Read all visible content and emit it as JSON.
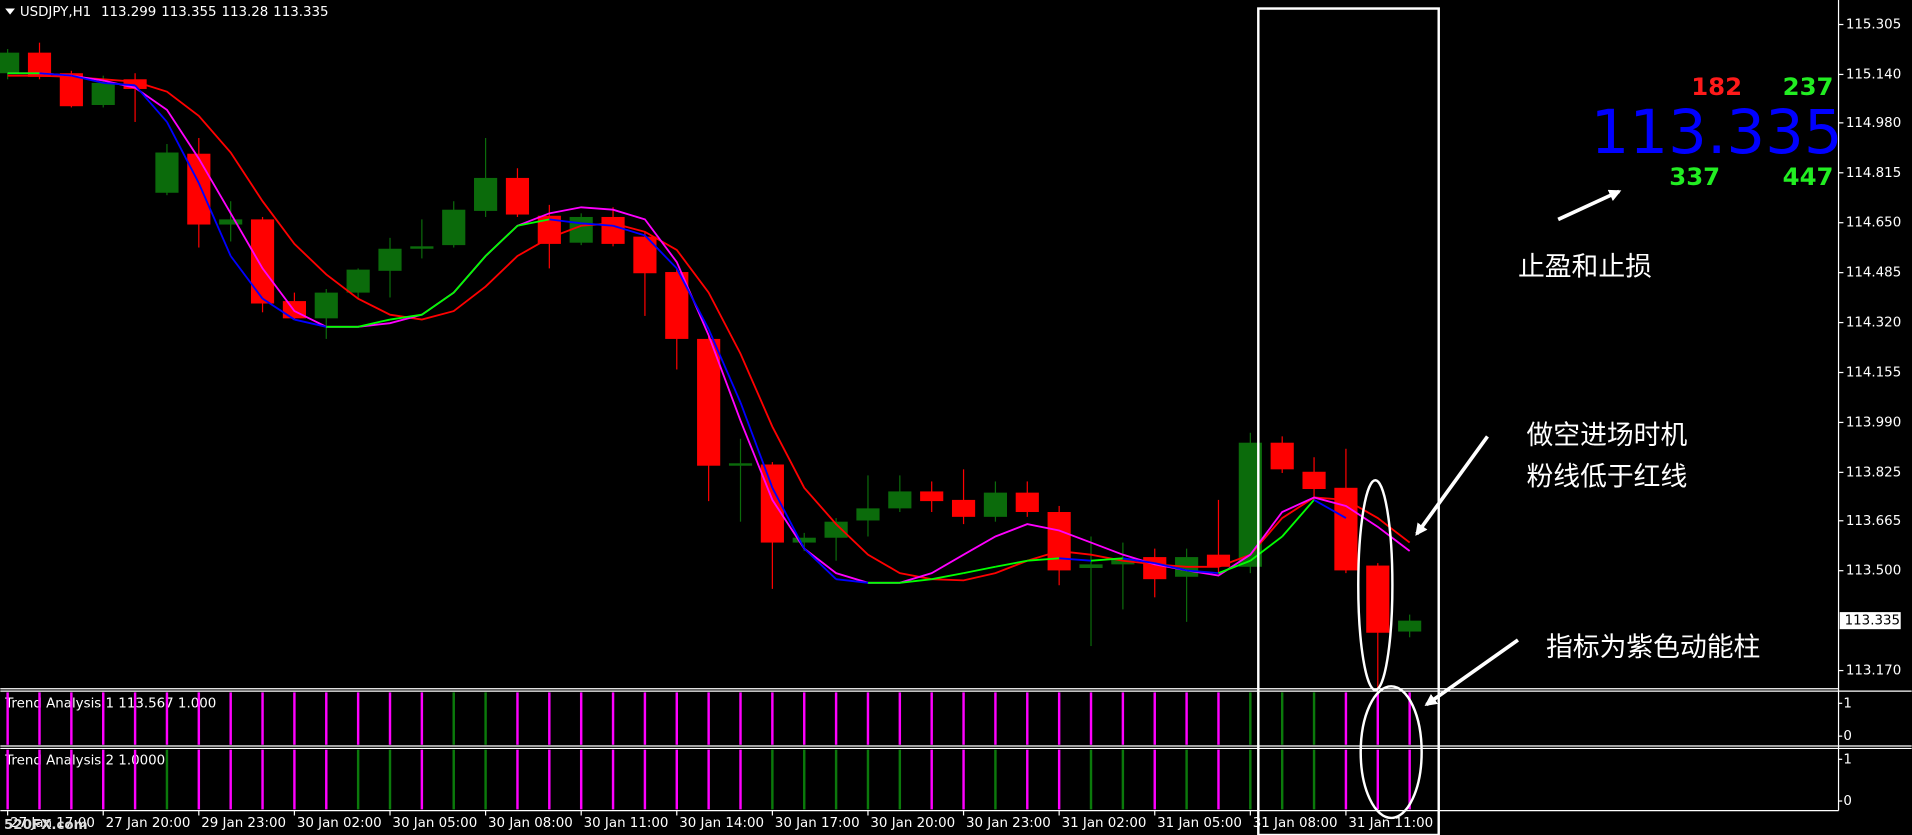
{
  "chart_data": {
    "type": "candlestick",
    "title": "USDJPY,H1",
    "ylim": [
      113.11,
      115.386
    ],
    "yticks": [
      115.305,
      {
        "value": 115.14,
        "label": "115.140"
      },
      {
        "value": 114.98,
        "label": "114.980"
      },
      114.815,
      {
        "value": 114.65,
        "label": "114.650"
      },
      114.485,
      {
        "value": 114.32,
        "label": "114.320"
      },
      114.155,
      {
        "value": 113.99,
        "label": "113.990"
      },
      113.825,
      113.665,
      {
        "value": 113.5,
        "label": "113.500"
      },
      {
        "value": 113.17,
        "label": "113.170"
      }
    ],
    "categories": [
      "27 Jan 17:00",
      null,
      null,
      "27 Jan 20:00",
      null,
      null,
      "29 Jan 23:00",
      null,
      null,
      "30 Jan 02:00",
      null,
      null,
      "30 Jan 05:00",
      null,
      null,
      "30 Jan 08:00",
      null,
      null,
      "30 Jan 11:00",
      null,
      null,
      "30 Jan 14:00",
      null,
      null,
      "30 Jan 17:00",
      null,
      null,
      "30 Jan 20:00",
      null,
      null,
      "30 Jan 23:00",
      null,
      null,
      "31 Jan 02:00",
      null,
      null,
      "31 Jan 05:00",
      null,
      null,
      "31 Jan 08:00",
      null,
      null,
      "31 Jan 11:00",
      null,
      null
    ],
    "up_color": "#0b6b0b",
    "down_color": "#ff0000",
    "open": [
      115.144,
      115.212,
      115.144,
      115.039,
      115.124,
      114.749,
      114.878,
      114.644,
      114.661,
      114.391,
      114.334,
      114.419,
      114.491,
      114.564,
      114.576,
      114.689,
      114.798,
      114.673,
      114.584,
      114.669,
      114.604,
      114.487,
      114.266,
      113.847,
      113.851,
      113.593,
      113.609,
      113.666,
      113.706,
      113.762,
      113.734,
      113.678,
      113.758,
      113.694,
      113.509,
      113.521,
      113.545,
      113.48,
      113.553,
      113.513,
      113.923,
      113.827,
      113.774,
      113.517,
      113.299
    ],
    "high": [
      115.224,
      115.245,
      115.152,
      115.136,
      115.144,
      114.91,
      114.93,
      114.721,
      114.669,
      114.419,
      114.431,
      114.499,
      114.6,
      114.661,
      114.721,
      114.93,
      114.83,
      114.709,
      114.681,
      114.701,
      114.62,
      114.499,
      114.274,
      113.936,
      113.859,
      113.625,
      113.674,
      113.815,
      113.815,
      113.795,
      113.835,
      113.795,
      113.795,
      113.714,
      113.613,
      113.593,
      113.573,
      113.573,
      113.734,
      113.956,
      113.944,
      113.875,
      113.903,
      113.525,
      113.355
    ],
    "low": [
      115.124,
      115.124,
      115.031,
      115.031,
      114.983,
      114.741,
      114.568,
      114.588,
      114.354,
      114.33,
      114.266,
      114.399,
      114.403,
      114.532,
      114.568,
      114.669,
      114.669,
      114.499,
      114.576,
      114.572,
      114.342,
      114.165,
      113.73,
      113.662,
      113.44,
      113.565,
      113.533,
      113.613,
      113.694,
      113.694,
      113.654,
      113.662,
      113.678,
      113.452,
      113.251,
      113.372,
      113.412,
      113.331,
      113.492,
      113.492,
      113.823,
      113.734,
      113.492,
      113.11,
      113.28
    ],
    "close": [
      115.212,
      115.132,
      115.035,
      115.112,
      115.092,
      114.882,
      114.644,
      114.661,
      114.383,
      114.334,
      114.419,
      114.495,
      114.564,
      114.572,
      114.693,
      114.798,
      114.677,
      114.58,
      114.669,
      114.58,
      114.483,
      114.266,
      113.847,
      113.855,
      113.593,
      113.609,
      113.662,
      113.706,
      113.762,
      113.73,
      113.678,
      113.758,
      113.694,
      113.501,
      113.521,
      113.541,
      113.472,
      113.545,
      113.513,
      113.923,
      113.835,
      113.77,
      113.501,
      113.295,
      113.335
    ],
    "lines": [
      {
        "color": "#ff0000",
        "values": [
          115.136,
          115.136,
          115.132,
          115.124,
          115.116,
          115.083,
          115.003,
          114.882,
          114.721,
          114.58,
          114.479,
          114.399,
          114.346,
          114.33,
          114.358,
          114.439,
          114.54,
          114.6,
          114.64,
          114.648,
          114.62,
          114.56,
          114.419,
          114.217,
          113.976,
          113.774,
          113.654,
          113.553,
          113.492,
          113.472,
          113.468,
          113.492,
          113.533,
          113.565,
          113.553,
          113.533,
          113.521,
          113.513,
          113.513,
          113.553,
          113.674,
          113.742,
          113.734,
          113.674,
          113.593
        ]
      },
      {
        "color": "#ff00ff",
        "values": [
          115.144,
          115.144,
          115.136,
          115.12,
          115.096,
          115.023,
          114.862,
          114.681,
          114.499,
          114.358,
          114.306,
          114.306,
          114.318,
          114.346,
          114.419,
          114.54,
          114.64,
          114.681,
          114.701,
          114.693,
          114.661,
          114.52,
          114.278,
          113.996,
          113.734,
          113.573,
          113.492,
          113.46,
          113.46,
          113.492,
          113.553,
          113.613,
          113.654,
          113.633,
          113.593,
          113.553,
          113.521,
          113.501,
          113.484,
          113.553,
          113.694,
          113.742,
          113.714,
          113.645,
          113.565
        ]
      }
    ],
    "signal": {
      "up_color": "#00ff00",
      "down_color": "#0000ff",
      "values": [
        115.144,
        115.144,
        115.136,
        115.112,
        115.104,
        114.983,
        114.781,
        114.54,
        114.399,
        114.33,
        114.306,
        114.306,
        114.33,
        114.346,
        114.419,
        114.54,
        114.64,
        114.661,
        114.648,
        114.64,
        114.608,
        114.499,
        114.298,
        114.056,
        113.774,
        113.573,
        113.472,
        113.46,
        113.46,
        113.472,
        113.492,
        113.513,
        113.533,
        113.541,
        113.533,
        113.541,
        113.525,
        113.501,
        113.492,
        113.533,
        113.613,
        113.734,
        113.674,
        null,
        null
      ]
    },
    "panels": [
      {
        "label": "Trend Analysis 1 113.567 1.000",
        "ylim": [
          -0.3,
          1.37
        ],
        "yticks": [
          1,
          0
        ],
        "series": [
          {
            "color": "#ff00ff",
            "values": [
              1,
              1,
              1,
              1,
              1,
              1,
              1,
              1,
              1,
              1,
              1,
              1,
              1,
              1,
              null,
              null,
              1,
              1,
              1,
              1,
              1,
              1,
              1,
              1,
              1,
              1,
              1,
              1,
              1,
              1,
              1,
              1,
              1,
              1,
              1,
              1,
              1,
              1,
              1,
              null,
              null,
              null,
              1,
              1,
              1
            ]
          },
          {
            "color": "#0b7a0b",
            "values": [
              null,
              null,
              null,
              null,
              null,
              null,
              null,
              null,
              null,
              null,
              null,
              null,
              null,
              null,
              1,
              1,
              null,
              null,
              null,
              null,
              null,
              null,
              null,
              null,
              null,
              null,
              null,
              null,
              null,
              null,
              null,
              null,
              null,
              null,
              null,
              null,
              null,
              null,
              null,
              1,
              1,
              1,
              null,
              null,
              null
            ]
          }
        ]
      },
      {
        "label": "Trend Analysis 2 1.0000",
        "ylim": [
          -0.23,
          1.26
        ],
        "yticks": [
          1,
          0
        ],
        "series": [
          {
            "color": "#ff00ff",
            "values": [
              1,
              1,
              1,
              1,
              1,
              null,
              1,
              1,
              1,
              1,
              1,
              null,
              null,
              1,
              null,
              null,
              1,
              1,
              1,
              1,
              1,
              1,
              1,
              1,
              null,
              null,
              null,
              null,
              null,
              1,
              1,
              null,
              1,
              1,
              null,
              null,
              1,
              null,
              1,
              null,
              null,
              null,
              1,
              1,
              1
            ]
          },
          {
            "color": "#0b7a0b",
            "values": [
              null,
              null,
              null,
              null,
              null,
              1,
              null,
              null,
              null,
              null,
              null,
              1,
              1,
              null,
              1,
              1,
              null,
              null,
              null,
              null,
              null,
              null,
              null,
              null,
              1,
              1,
              1,
              1,
              1,
              null,
              null,
              1,
              null,
              null,
              1,
              1,
              null,
              1,
              null,
              1,
              1,
              1,
              null,
              null,
              null
            ]
          }
        ]
      }
    ]
  },
  "info_panel": {
    "top_left": 182,
    "top_right": 237,
    "bottom_left": 337,
    "bottom_right": 447
  },
  "annotations": [
    "止盈和止损",
    "做空进场时机",
    "粉线低于红线",
    "指标为紫色动能柱"
  ],
  "watermark": "520FX.com"
}
